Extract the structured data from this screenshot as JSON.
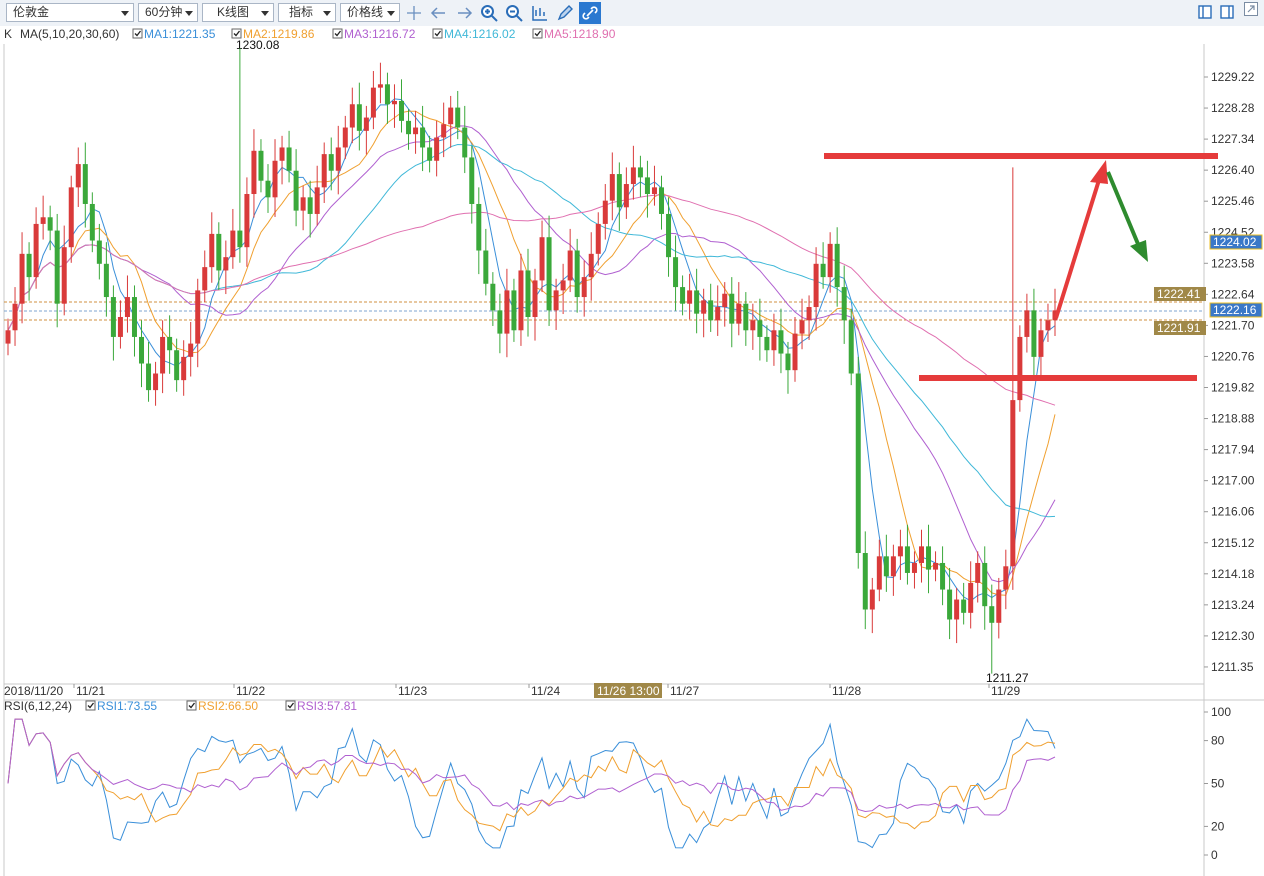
{
  "toolbar": {
    "instrument": "伦敦金",
    "period": "60分钟",
    "chart_type": "K线图",
    "indicator": "指标",
    "price_line": "价格线"
  },
  "legend": {
    "prefix": "K",
    "ma_name": "MA(5,10,20,30,60)",
    "ma": [
      {
        "label": "MA1:1221.35",
        "color": "#3a8fd9"
      },
      {
        "label": "MA2:1219.86",
        "color": "#f0a030"
      },
      {
        "label": "MA3:1216.72",
        "color": "#b060d0"
      },
      {
        "label": "MA4:1216.02",
        "color": "#40b8d8"
      },
      {
        "label": "MA5:1218.90",
        "color": "#e070b0"
      }
    ],
    "high_label": "1230.08",
    "low_label": "1211.27"
  },
  "price_axis": [
    "1229.22",
    "1228.28",
    "1227.34",
    "1226.40",
    "1225.46",
    "1224.52",
    "1223.58",
    "1222.64",
    "1221.70",
    "1220.76",
    "1219.82",
    "1218.88",
    "1217.94",
    "1217.00",
    "1216.06",
    "1215.12",
    "1214.18",
    "1213.24",
    "1212.30",
    "1211.35"
  ],
  "price_tags": [
    {
      "text": "1224.02",
      "style": "blue"
    },
    {
      "text": "1222.41",
      "style": "gold"
    },
    {
      "text": "1222.16",
      "style": "blue"
    },
    {
      "text": "1221.91",
      "style": "gold"
    }
  ],
  "date_axis": [
    "2018/11/20",
    "11/21",
    "11/22",
    "11/23",
    "11/24",
    "11/27",
    "11/28",
    "11/29"
  ],
  "date_cursor": "11/26 13:00",
  "rsi": {
    "name": "RSI(6,12,24)",
    "items": [
      {
        "label": "RSI1:73.55",
        "color": "#3a8fd9"
      },
      {
        "label": "RSI2:66.50",
        "color": "#f0a030"
      },
      {
        "label": "RSI3:57.81",
        "color": "#b060d0"
      }
    ],
    "axis": [
      "100",
      "80",
      "50",
      "20",
      "0"
    ]
  },
  "colors": {
    "up": "#d93a3a",
    "down": "#3aa83a",
    "annotation_red": "#e53b3b",
    "annotation_green": "#2e8b2e"
  }
}
